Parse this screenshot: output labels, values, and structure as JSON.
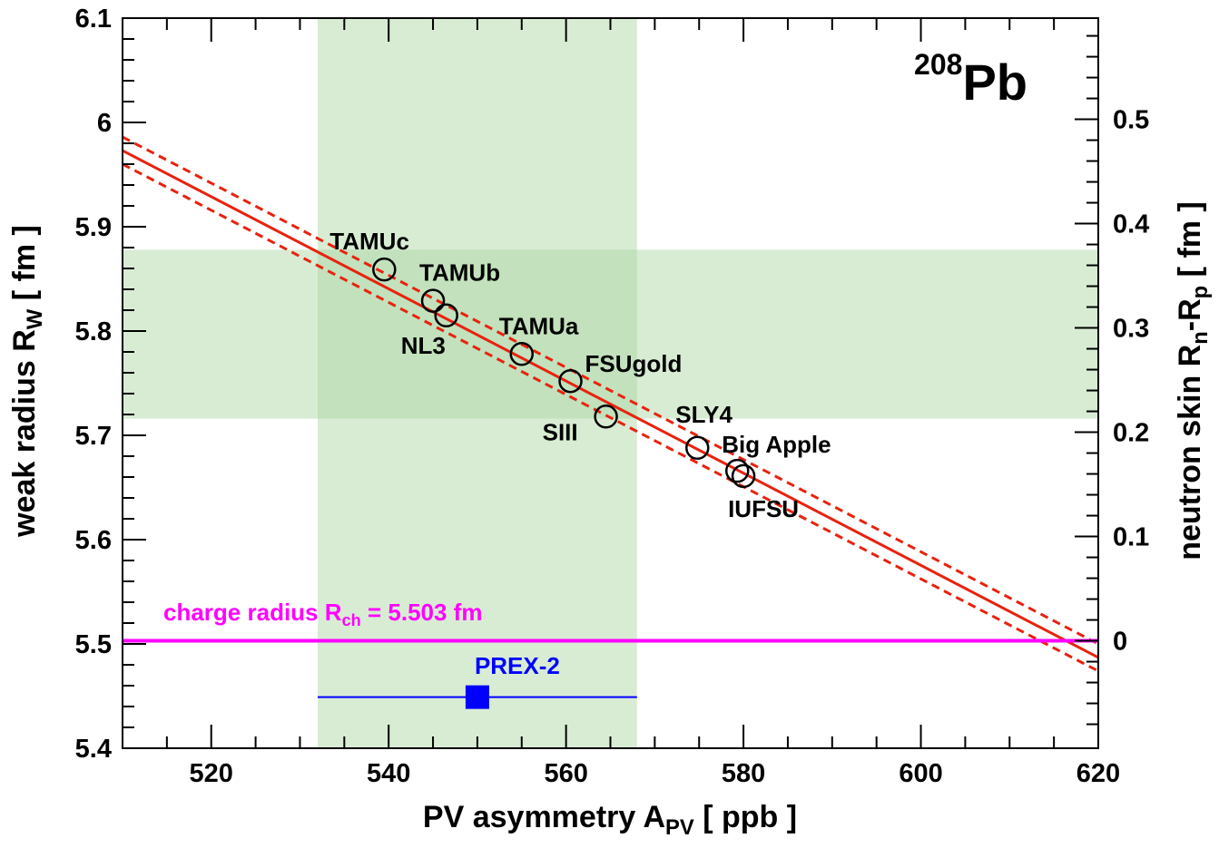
{
  "chart_data": {
    "type": "scatter",
    "nucleus": {
      "mass_number": "208",
      "symbol": "Pb"
    },
    "x_axis": {
      "label_main": "PV asymmetry A",
      "label_sub": "PV",
      "label_unit": " [ ppb ]",
      "range": [
        510,
        620
      ],
      "ticks": [
        520,
        540,
        560,
        580,
        600,
        620
      ]
    },
    "y_axis_left": {
      "label_main": "weak radius R",
      "label_sub": "W",
      "label_unit": " [ fm ]",
      "range": [
        5.4,
        6.1
      ],
      "ticks": [
        "5.4",
        "5.5",
        "5.6",
        "5.7",
        "5.8",
        "5.9",
        "6",
        "6.1"
      ]
    },
    "y_axis_right": {
      "label_main": "neutron skin R",
      "label_sub1": "n",
      "label_mid": "-R",
      "label_sub2": "p",
      "label_unit": " [ fm ]",
      "offset": 5.503,
      "ticks": [
        "0",
        "0.1",
        "0.2",
        "0.3",
        "0.4",
        "0.5"
      ]
    },
    "models": [
      {
        "name": "TAMUc",
        "x": 539.5,
        "y": 5.859
      },
      {
        "name": "TAMUb",
        "x": 545.0,
        "y": 5.829
      },
      {
        "name": "NL3",
        "x": 546.5,
        "y": 5.815
      },
      {
        "name": "TAMUa",
        "x": 555.0,
        "y": 5.778
      },
      {
        "name": "FSUgold",
        "x": 560.5,
        "y": 5.752
      },
      {
        "name": "SIII",
        "x": 564.5,
        "y": 5.718
      },
      {
        "name": "SLY4",
        "x": 574.8,
        "y": 5.688
      },
      {
        "name": "Big Apple",
        "x": 579.3,
        "y": 5.666
      },
      {
        "name": "IUFSU",
        "x": 580.0,
        "y": 5.661
      }
    ],
    "fit_line": {
      "x": [
        510,
        620
      ],
      "y": [
        5.973,
        5.487
      ],
      "band_halfwidth": 0.013,
      "color": "#e8220e"
    },
    "charge_radius": {
      "label_main": "charge radius R",
      "label_sub": "ch",
      "label_value": " = 5.503 fm",
      "value": 5.503,
      "color": "#ff00ff"
    },
    "measurement": {
      "name": "PREX-2",
      "x": 550.0,
      "x_err": [
        532.0,
        568.0
      ],
      "y": 5.449,
      "color": "#0000ff"
    },
    "bands": {
      "x_range": [
        532.0,
        568.0
      ],
      "y_range": [
        5.716,
        5.878
      ],
      "color": "#a8d5a0"
    }
  }
}
